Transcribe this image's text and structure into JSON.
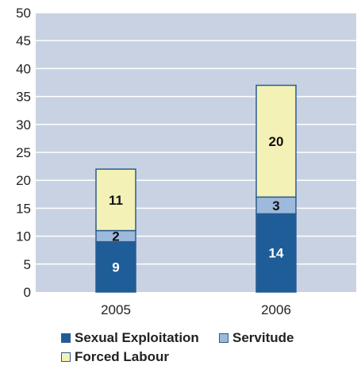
{
  "chart_data": {
    "type": "bar",
    "stacked": true,
    "categories": [
      "2005",
      "2006"
    ],
    "series": [
      {
        "name": "Sexual Exploitation",
        "values": [
          9,
          14
        ],
        "color": "#1f5d99",
        "label_color": "#ffffff"
      },
      {
        "name": "Servitude",
        "values": [
          2,
          3
        ],
        "color": "#9db9dc",
        "label_color": "#111111"
      },
      {
        "name": "Forced Labour",
        "values": [
          11,
          20
        ],
        "color": "#f4f1b6",
        "label_color": "#111111"
      }
    ],
    "ylim": [
      0,
      50
    ],
    "yticks": [
      0,
      5,
      10,
      15,
      20,
      25,
      30,
      35,
      40,
      45,
      50
    ],
    "grid": true,
    "legend_position": "bottom",
    "plot_background": "#c9d2e2",
    "gridline_color": "#ffffff",
    "bar_border_color": "#2a5c8f",
    "title": "",
    "xlabel": "",
    "ylabel": ""
  }
}
